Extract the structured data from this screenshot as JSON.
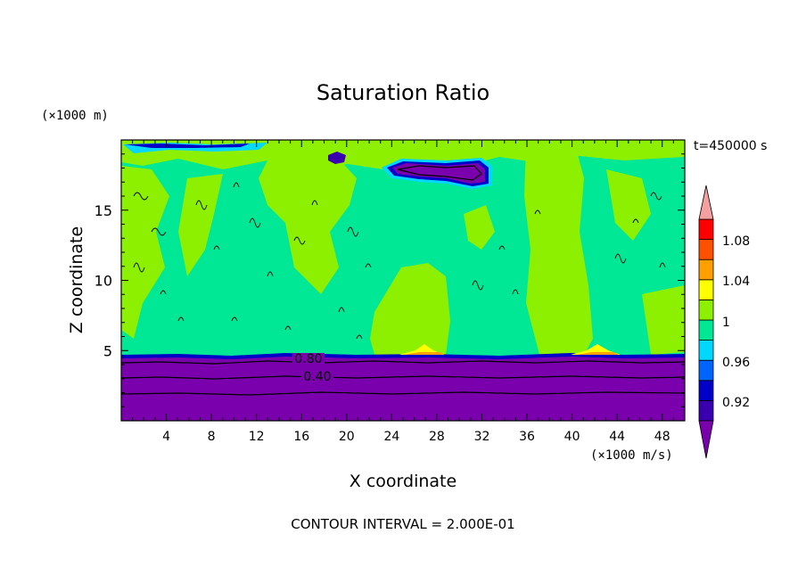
{
  "chart_data": {
    "type": "heatmap",
    "title": "Saturation Ratio",
    "xlabel": "X coordinate",
    "ylabel": "Z coordinate",
    "x_unit": "(×1000 m/s)",
    "y_unit": "(×1000 m)",
    "time_label": "t=450000 s",
    "footer": "CONTOUR INTERVAL = 2.000E-01",
    "xlim": [
      0,
      50
    ],
    "ylim": [
      0,
      20
    ],
    "x_ticks": [
      "4",
      "8",
      "12",
      "16",
      "20",
      "24",
      "28",
      "32",
      "36",
      "40",
      "44",
      "48"
    ],
    "y_ticks": [
      "5",
      "10",
      "15"
    ],
    "contour_labels": [
      "0.80",
      "0.40"
    ],
    "colorbar": {
      "labels": [
        "1.08",
        "1.04",
        "1",
        "0.96",
        "0.92"
      ],
      "levels": [
        0.9,
        0.92,
        0.94,
        0.96,
        0.98,
        1.0,
        1.02,
        1.04,
        1.06,
        1.08,
        1.1
      ],
      "colors": [
        "#7a00ad",
        "#3a00b0",
        "#0000c8",
        "#0064ff",
        "#00d8ff",
        "#00e896",
        "#8cf000",
        "#ffff00",
        "#ffa000",
        "#ff5000",
        "#ff0000",
        "#f5a0a0"
      ]
    }
  }
}
